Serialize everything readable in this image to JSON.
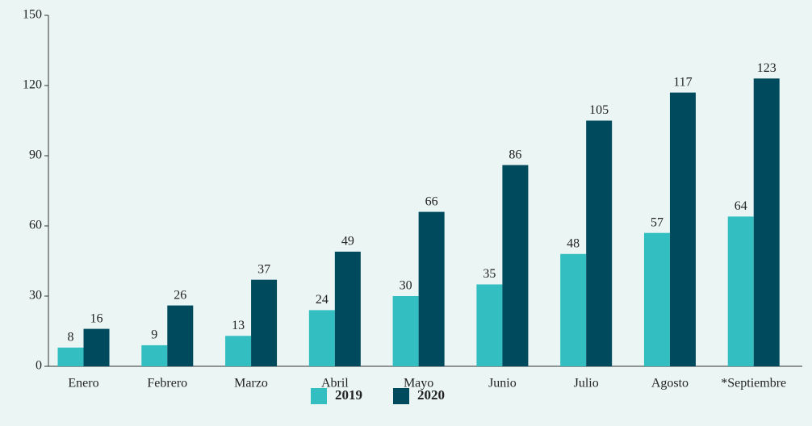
{
  "chart_data": {
    "type": "bar",
    "categories": [
      "Enero",
      "Febrero",
      "Marzo",
      "Abril",
      "Mayo",
      "Junio",
      "Julio",
      "Agosto",
      "*Septiembre"
    ],
    "series": [
      {
        "name": "2019",
        "color": "#33bfc1",
        "values": [
          8,
          9,
          13,
          24,
          30,
          35,
          48,
          57,
          64
        ]
      },
      {
        "name": "2020",
        "color": "#004a5e",
        "values": [
          16,
          26,
          37,
          49,
          66,
          86,
          105,
          117,
          123
        ]
      }
    ],
    "ylim": [
      0,
      150
    ],
    "yticks": [
      0,
      30,
      60,
      90,
      120,
      150
    ],
    "grid": false,
    "legend": "bottom"
  }
}
